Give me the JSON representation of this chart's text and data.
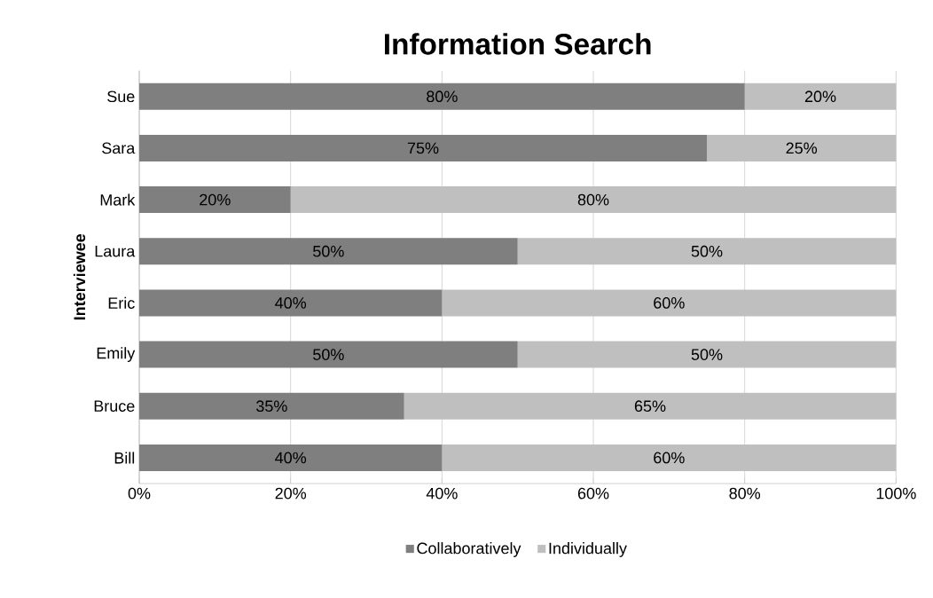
{
  "chart_data": {
    "type": "bar",
    "orientation": "horizontal",
    "stacked": true,
    "title": "Information Search",
    "ylabel": "Interviewee",
    "categories": [
      "Sue",
      "Sara",
      "Mark",
      "Laura",
      "Eric",
      "Emily",
      "Bruce",
      "Bill"
    ],
    "series": [
      {
        "name": "Collaboratively",
        "color": "#7f7f7f",
        "values": [
          80,
          75,
          20,
          50,
          40,
          50,
          35,
          40
        ],
        "value_labels": [
          "80%",
          "75%",
          "20%",
          "50%",
          "40%",
          "50%",
          "35%",
          "40%"
        ]
      },
      {
        "name": "Individually",
        "color": "#bfbfbf",
        "values": [
          20,
          25,
          80,
          50,
          60,
          50,
          65,
          60
        ],
        "value_labels": [
          "20%",
          "25%",
          "80%",
          "50%",
          "60%",
          "50%",
          "65%",
          "60%"
        ]
      }
    ],
    "xlim": [
      0,
      100
    ],
    "xticks": [
      {
        "value": 0,
        "label": "0%"
      },
      {
        "value": 20,
        "label": "20%"
      },
      {
        "value": 40,
        "label": "40%"
      },
      {
        "value": 60,
        "label": "60%"
      },
      {
        "value": 80,
        "label": "80%"
      },
      {
        "value": 100,
        "label": "100%"
      }
    ],
    "grid": "x",
    "legend": "bottom"
  }
}
